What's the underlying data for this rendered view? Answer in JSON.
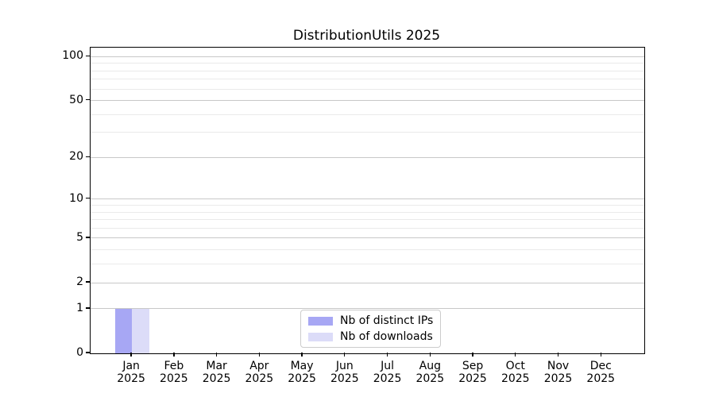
{
  "chart_data": {
    "type": "bar",
    "title": "DistributionUtils 2025",
    "categories": [
      "Jan",
      "Feb",
      "Mar",
      "Apr",
      "May",
      "Jun",
      "Jul",
      "Aug",
      "Sep",
      "Oct",
      "Nov",
      "Dec"
    ],
    "x_tick_year": "2025",
    "series": [
      {
        "name": "Nb of distinct IPs",
        "color": "#a7a7f4",
        "values": [
          1,
          0,
          0,
          0,
          0,
          0,
          0,
          0,
          0,
          0,
          0,
          0
        ]
      },
      {
        "name": "Nb of downloads",
        "color": "#dcdcf8",
        "values": [
          1,
          0,
          0,
          0,
          0,
          0,
          0,
          0,
          0,
          0,
          0,
          0
        ]
      }
    ],
    "yscale": "log10(1+y)",
    "y_major_ticks": [
      0,
      1,
      2,
      5,
      10,
      20,
      50,
      100
    ],
    "y_minor_ticks": [
      3,
      4,
      6,
      7,
      8,
      9,
      30,
      40,
      60,
      70,
      80,
      90
    ],
    "ylim": [
      0,
      115
    ],
    "xlim": [
      -0.97,
      12.0
    ],
    "bar_width": 0.4,
    "grid": "both",
    "legend_position": "lower center"
  },
  "colors": {
    "major_grid": "#c8c8c8",
    "minor_grid": "#eaeaea",
    "axis": "#000000",
    "legend_border": "#cccccc",
    "background": "#ffffff"
  }
}
